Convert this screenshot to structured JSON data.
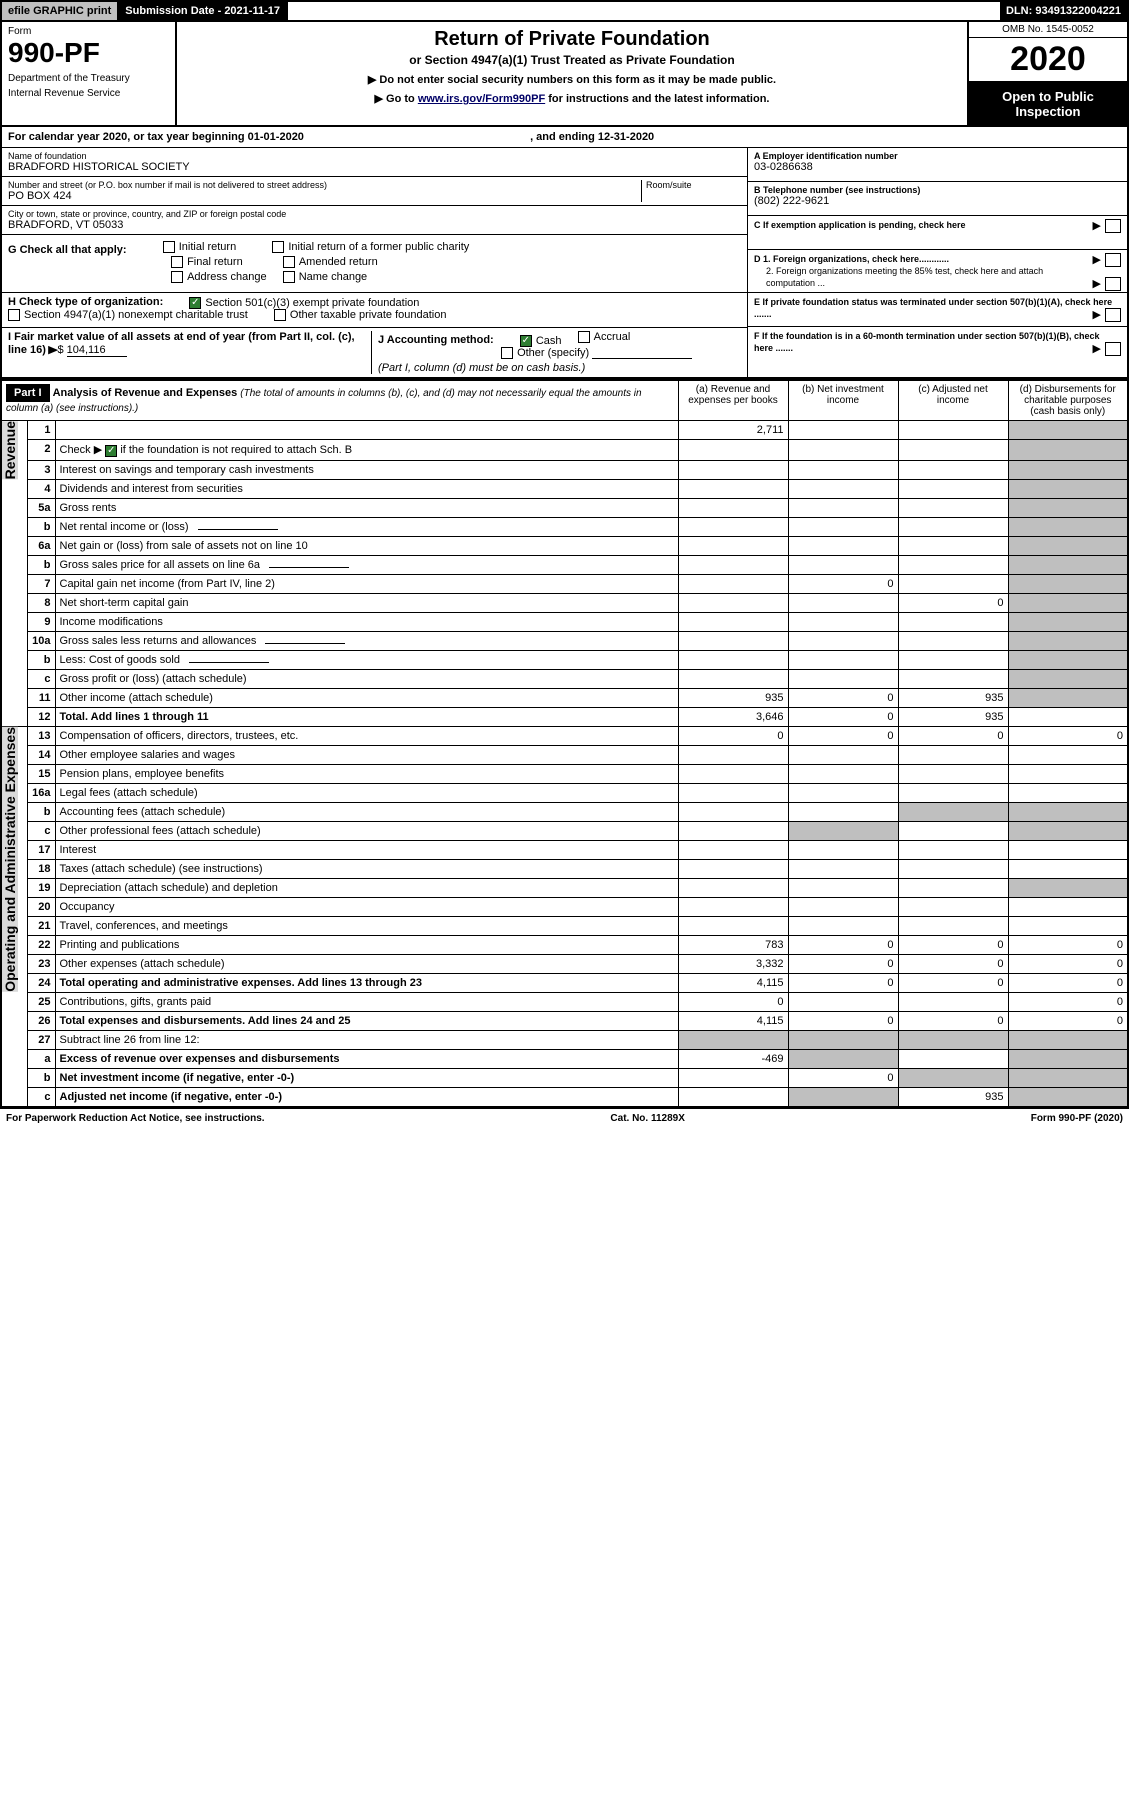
{
  "topbar": {
    "efile": "efile GRAPHIC print",
    "subdate_label": "Submission Date - 2021-11-17",
    "dln": "DLN: 93491322004221"
  },
  "hdr": {
    "form_word": "Form",
    "form_num": "990-PF",
    "dept": "Department of the Treasury",
    "irs": "Internal Revenue Service",
    "title": "Return of Private Foundation",
    "sub": "or Section 4947(a)(1) Trust Treated as Private Foundation",
    "note1": "▶ Do not enter social security numbers on this form as it may be made public.",
    "note2_pre": "▶ Go to ",
    "note2_link": "www.irs.gov/Form990PF",
    "note2_post": " for instructions and the latest information.",
    "omb": "OMB No. 1545-0052",
    "year": "2020",
    "open": "Open to Public Inspection"
  },
  "calyr": {
    "pre": "For calendar year 2020, or tax year beginning ",
    "begin": "01-01-2020",
    "mid": " , and ending ",
    "end": "12-31-2020"
  },
  "id": {
    "name_lbl": "Name of foundation",
    "name": "BRADFORD HISTORICAL SOCIETY",
    "addr_lbl": "Number and street (or P.O. box number if mail is not delivered to street address)",
    "room_lbl": "Room/suite",
    "addr": "PO BOX 424",
    "city_lbl": "City or town, state or province, country, and ZIP or foreign postal code",
    "city": "BRADFORD, VT  05033",
    "A_lbl": "A Employer identification number",
    "A": "03-0286638",
    "B_lbl": "B Telephone number (see instructions)",
    "B": "(802) 222-9621",
    "C_lbl": "C If exemption application is pending, check here",
    "D1": "D 1. Foreign organizations, check here............",
    "D2": "2. Foreign organizations meeting the 85% test, check here and attach computation ...",
    "E": "E  If private foundation status was terminated under section 507(b)(1)(A), check here .......",
    "F": "F  If the foundation is in a 60-month termination under section 507(b)(1)(B), check here .......",
    "G_lbl": "G Check all that apply:",
    "G_opts": [
      "Initial return",
      "Final return",
      "Address change",
      "Initial return of a former public charity",
      "Amended return",
      "Name change"
    ],
    "H_lbl": "H Check type of organization:",
    "H1": "Section 501(c)(3) exempt private foundation",
    "H2": "Section 4947(a)(1) nonexempt charitable trust",
    "H3": "Other taxable private foundation",
    "I_lbl": "I Fair market value of all assets at end of year (from Part II, col. (c), line 16)",
    "I_val": "104,116",
    "J_lbl": "J Accounting method:",
    "J_cash": "Cash",
    "J_acc": "Accrual",
    "J_other": "Other (specify)",
    "J_note": "(Part I, column (d) must be on cash basis.)"
  },
  "part1": {
    "label": "Part I",
    "title": "Analysis of Revenue and Expenses",
    "title_note": "(The total of amounts in columns (b), (c), and (d) may not necessarily equal the amounts in column (a) (see instructions).)",
    "cols": {
      "a": "(a)  Revenue and expenses per books",
      "b": "(b)  Net investment income",
      "c": "(c)  Adjusted net income",
      "d": "(d)  Disbursements for charitable purposes (cash basis only)"
    }
  },
  "sections": {
    "rev": "Revenue",
    "exp": "Operating and Administrative Expenses"
  },
  "rows": [
    {
      "n": "1",
      "d": "",
      "a": "2,711",
      "b": "",
      "c": ""
    },
    {
      "n": "2",
      "d_pre": "Check ▶ ",
      "d_post": " if the foundation is not required to attach Sch. B",
      "chk": true,
      "nodata": true
    },
    {
      "n": "3",
      "d": "Interest on savings and temporary cash investments"
    },
    {
      "n": "4",
      "d": "Dividends and interest from securities"
    },
    {
      "n": "5a",
      "d": "Gross rents"
    },
    {
      "n": "b",
      "d": "Net rental income or (loss)",
      "blank_after": true
    },
    {
      "n": "6a",
      "d": "Net gain or (loss) from sale of assets not on line 10"
    },
    {
      "n": "b",
      "d": "Gross sales price for all assets on line 6a",
      "blank_after": true
    },
    {
      "n": "7",
      "d": "Capital gain net income (from Part IV, line 2)",
      "b": "0"
    },
    {
      "n": "8",
      "d": "Net short-term capital gain",
      "c": "0"
    },
    {
      "n": "9",
      "d": "Income modifications"
    },
    {
      "n": "10a",
      "d": "Gross sales less returns and allowances",
      "blank_after": true
    },
    {
      "n": "b",
      "d": "Less: Cost of goods sold",
      "blank_after": true
    },
    {
      "n": "c",
      "d": "Gross profit or (loss) (attach schedule)"
    },
    {
      "n": "11",
      "d": "Other income (attach schedule)",
      "a": "935",
      "b": "0",
      "c": "935"
    },
    {
      "n": "12",
      "d": "Total. Add lines 1 through 11",
      "bold": true,
      "a": "3,646",
      "b": "0",
      "c": "935"
    }
  ],
  "exp_rows": [
    {
      "n": "13",
      "d": "Compensation of officers, directors, trustees, etc.",
      "a": "0",
      "b": "0",
      "c": "0",
      "dd": "0"
    },
    {
      "n": "14",
      "d": "Other employee salaries and wages"
    },
    {
      "n": "15",
      "d": "Pension plans, employee benefits"
    },
    {
      "n": "16a",
      "d": "Legal fees (attach schedule)"
    },
    {
      "n": "b",
      "d": "Accounting fees (attach schedule)"
    },
    {
      "n": "c",
      "d": "Other professional fees (attach schedule)"
    },
    {
      "n": "17",
      "d": "Interest"
    },
    {
      "n": "18",
      "d": "Taxes (attach schedule) (see instructions)"
    },
    {
      "n": "19",
      "d": "Depreciation (attach schedule) and depletion"
    },
    {
      "n": "20",
      "d": "Occupancy"
    },
    {
      "n": "21",
      "d": "Travel, conferences, and meetings"
    },
    {
      "n": "22",
      "d": "Printing and publications",
      "a": "783",
      "b": "0",
      "c": "0",
      "dd": "0"
    },
    {
      "n": "23",
      "d": "Other expenses (attach schedule)",
      "a": "3,332",
      "b": "0",
      "c": "0",
      "dd": "0"
    },
    {
      "n": "24",
      "d": "Total operating and administrative expenses. Add lines 13 through 23",
      "bold": true,
      "a": "4,115",
      "b": "0",
      "c": "0",
      "dd": "0"
    },
    {
      "n": "25",
      "d": "Contributions, gifts, grants paid",
      "a": "0",
      "dd": "0"
    },
    {
      "n": "26",
      "d": "Total expenses and disbursements. Add lines 24 and 25",
      "bold": true,
      "a": "4,115",
      "b": "0",
      "c": "0",
      "dd": "0"
    },
    {
      "n": "27",
      "d": "Subtract line 26 from line 12:"
    },
    {
      "n": "a",
      "d": "Excess of revenue over expenses and disbursements",
      "bold": true,
      "a": "-469"
    },
    {
      "n": "b",
      "d": "Net investment income (if negative, enter -0-)",
      "bold": true,
      "b": "0"
    },
    {
      "n": "c",
      "d": "Adjusted net income (if negative, enter -0-)",
      "bold": true,
      "c": "935"
    }
  ],
  "footer": {
    "left": "For Paperwork Reduction Act Notice, see instructions.",
    "mid": "Cat. No. 11289X",
    "right": "Form 990-PF (2020)"
  }
}
